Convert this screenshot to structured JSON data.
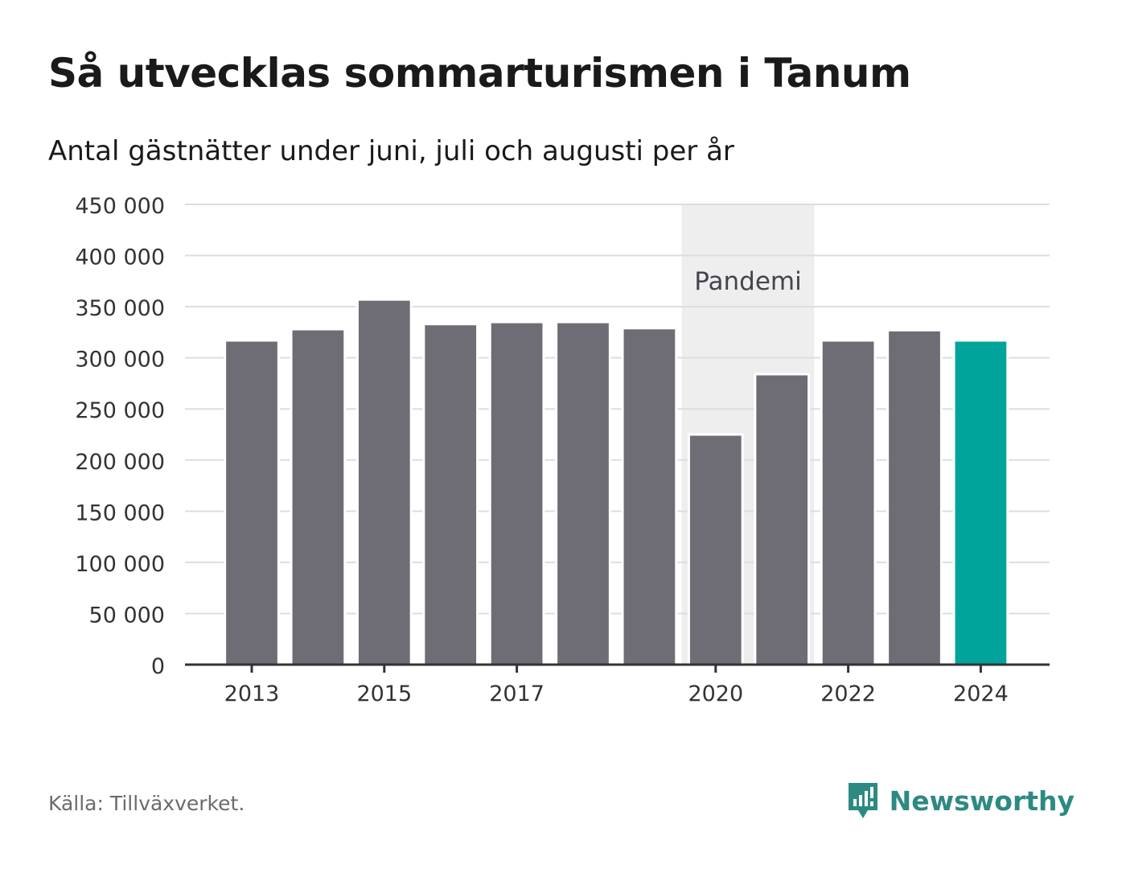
{
  "title": "Så utvecklas sommarturismen i Tanum",
  "subtitle": "Antal gästnätter under juni, juli och augusti per år",
  "source": "Källa: Tillväxverket.",
  "brand": {
    "name": "Newsworthy",
    "icon": "bar-chart-speech-icon",
    "color": "#2d8a83"
  },
  "colors": {
    "bar": "#6e6d75",
    "highlight": "#00a49a",
    "band": "#eeeeee",
    "grid": "#dddddd",
    "axis": "#333333"
  },
  "chart_data": {
    "type": "bar",
    "categories": [
      "2013",
      "2014",
      "2015",
      "2016",
      "2017",
      "2018",
      "2019",
      "2020",
      "2021",
      "2022",
      "2023",
      "2024"
    ],
    "values": [
      317000,
      328000,
      357000,
      333000,
      335000,
      335000,
      329000,
      225000,
      284000,
      317000,
      327000,
      317000
    ],
    "highlight_index": 11,
    "ylim": [
      0,
      450000
    ],
    "yticks": [
      0,
      50000,
      100000,
      150000,
      200000,
      250000,
      300000,
      350000,
      400000,
      450000
    ],
    "ytick_labels": [
      "0",
      "50 000",
      "100 000",
      "150 000",
      "200 000",
      "250 000",
      "300 000",
      "350 000",
      "400 000",
      "450 000"
    ],
    "xtick_labels": [
      "2013",
      "2015",
      "2017",
      "2020",
      "2022",
      "2024"
    ],
    "grid": true,
    "xlabel": "",
    "ylabel": "",
    "annotation": {
      "label": "Pandemi",
      "from": "2020",
      "to": "2021"
    }
  }
}
